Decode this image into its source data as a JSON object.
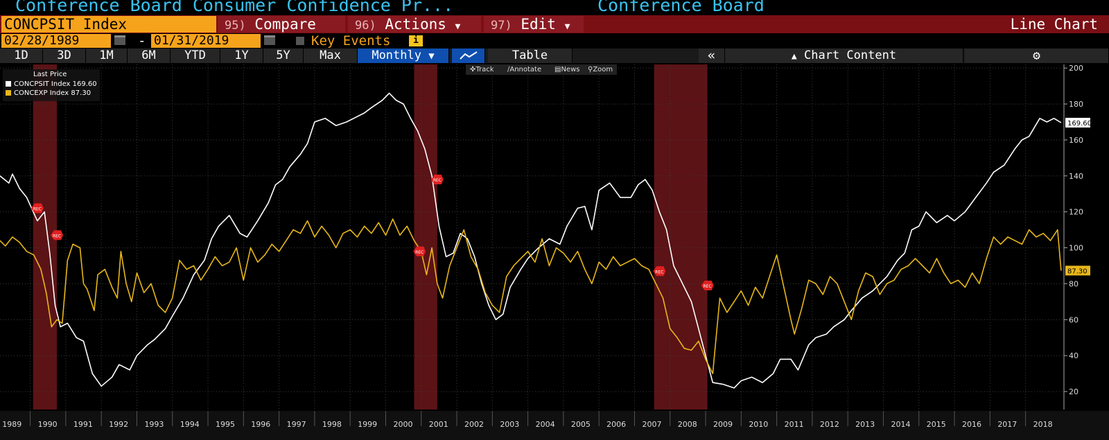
{
  "title_bar": {
    "left": "Conference Board Consumer Confidence Pr...",
    "right": "Conference Board"
  },
  "menu": {
    "ticker": "CONCPSIT Index",
    "compare_num": "95)",
    "compare": "Compare",
    "actions_num": "96)",
    "actions": "Actions",
    "edit_num": "97)",
    "edit": "Edit",
    "chart_type": "Line Chart"
  },
  "dates": {
    "start": "02/28/1989",
    "end": "01/31/2019",
    "dash": "-",
    "key_events": "Key Events",
    "info": "i"
  },
  "periods": [
    "1D",
    "3D",
    "1M",
    "6M",
    "YTD",
    "1Y",
    "5Y",
    "Max"
  ],
  "frequency": "Monthly",
  "table_label": "Table",
  "chart_content_label": "Chart Content",
  "tools": {
    "track": "Track",
    "annotate": "Annotate",
    "news": "News",
    "zoom": "Zoom"
  },
  "legend": {
    "title": "Last Price",
    "rows": [
      {
        "name": "CONCPSIT Index",
        "value": "169.60",
        "color": "#ffffff"
      },
      {
        "name": "CONCEXP Index",
        "value": "87.30",
        "color": "#e8b71a"
      }
    ]
  },
  "colors": {
    "accent": "#f6a31c",
    "brand_red": "#7a0f14",
    "selected": "#0f4fb0",
    "title": "#39c3f0"
  },
  "chart_data": {
    "type": "line",
    "x_start": 1989.15,
    "x_end": 2019.08,
    "ylim": [
      10,
      202
    ],
    "yticks": [
      20,
      40,
      60,
      80,
      100,
      120,
      140,
      160,
      180,
      200
    ],
    "xticks": [
      1989,
      1990,
      1991,
      1992,
      1993,
      1994,
      1995,
      1996,
      1997,
      1998,
      1999,
      2000,
      2001,
      2002,
      2003,
      2004,
      2005,
      2006,
      2007,
      2008,
      2009,
      2010,
      2011,
      2012,
      2013,
      2014,
      2015,
      2016,
      2017,
      2018
    ],
    "recessions": [
      [
        1990.08,
        1990.75
      ],
      [
        2000.8,
        2001.45
      ],
      [
        2007.55,
        2009.05
      ]
    ],
    "rec_markers": [
      {
        "x": 1990.2,
        "y": 122,
        "label": "REC"
      },
      {
        "x": 1990.75,
        "y": 107,
        "label": "REC"
      },
      {
        "x": 2000.95,
        "y": 98,
        "label": "REC"
      },
      {
        "x": 2001.45,
        "y": 138,
        "label": "REC"
      },
      {
        "x": 2007.7,
        "y": 87,
        "label": "REC"
      },
      {
        "x": 2009.05,
        "y": 79,
        "label": "REC"
      }
    ],
    "series": [
      {
        "name": "CONCPSIT Index",
        "color": "#ffffff",
        "last": "169.60",
        "points": [
          [
            1989.15,
            140
          ],
          [
            1989.4,
            136
          ],
          [
            1989.5,
            141
          ],
          [
            1989.7,
            133
          ],
          [
            1989.9,
            128
          ],
          [
            1990.2,
            115
          ],
          [
            1990.4,
            120
          ],
          [
            1990.55,
            97
          ],
          [
            1990.7,
            68
          ],
          [
            1990.85,
            56
          ],
          [
            1991.05,
            58
          ],
          [
            1991.3,
            50
          ],
          [
            1991.5,
            48
          ],
          [
            1991.75,
            30
          ],
          [
            1992.0,
            23
          ],
          [
            1992.3,
            28
          ],
          [
            1992.5,
            35
          ],
          [
            1992.8,
            32
          ],
          [
            1993.0,
            40
          ],
          [
            1993.3,
            46
          ],
          [
            1993.5,
            49
          ],
          [
            1993.8,
            55
          ],
          [
            1994.0,
            62
          ],
          [
            1994.3,
            72
          ],
          [
            1994.6,
            85
          ],
          [
            1994.9,
            93
          ],
          [
            1995.1,
            105
          ],
          [
            1995.3,
            112
          ],
          [
            1995.6,
            118
          ],
          [
            1995.9,
            108
          ],
          [
            1996.1,
            106
          ],
          [
            1996.4,
            115
          ],
          [
            1996.7,
            125
          ],
          [
            1996.9,
            135
          ],
          [
            1997.1,
            138
          ],
          [
            1997.3,
            145
          ],
          [
            1997.6,
            152
          ],
          [
            1997.8,
            158
          ],
          [
            1998.0,
            170
          ],
          [
            1998.3,
            172
          ],
          [
            1998.6,
            168
          ],
          [
            1998.9,
            170
          ],
          [
            1999.1,
            172
          ],
          [
            1999.4,
            175
          ],
          [
            1999.6,
            178
          ],
          [
            1999.9,
            182
          ],
          [
            2000.1,
            186
          ],
          [
            2000.3,
            182
          ],
          [
            2000.5,
            180
          ],
          [
            2000.7,
            172
          ],
          [
            2000.9,
            165
          ],
          [
            2001.1,
            155
          ],
          [
            2001.3,
            140
          ],
          [
            2001.5,
            112
          ],
          [
            2001.7,
            95
          ],
          [
            2001.9,
            97
          ],
          [
            2002.1,
            108
          ],
          [
            2002.3,
            105
          ],
          [
            2002.5,
            95
          ],
          [
            2002.7,
            80
          ],
          [
            2002.9,
            68
          ],
          [
            2003.1,
            60
          ],
          [
            2003.3,
            63
          ],
          [
            2003.5,
            78
          ],
          [
            2003.8,
            88
          ],
          [
            2004.0,
            94
          ],
          [
            2004.3,
            100
          ],
          [
            2004.6,
            105
          ],
          [
            2004.9,
            102
          ],
          [
            2005.1,
            112
          ],
          [
            2005.4,
            122
          ],
          [
            2005.6,
            123
          ],
          [
            2005.8,
            110
          ],
          [
            2006.0,
            132
          ],
          [
            2006.3,
            136
          ],
          [
            2006.6,
            128
          ],
          [
            2006.9,
            128
          ],
          [
            2007.1,
            135
          ],
          [
            2007.3,
            138
          ],
          [
            2007.5,
            132
          ],
          [
            2007.7,
            120
          ],
          [
            2007.9,
            110
          ],
          [
            2008.1,
            90
          ],
          [
            2008.4,
            78
          ],
          [
            2008.6,
            70
          ],
          [
            2008.8,
            55
          ],
          [
            2009.0,
            40
          ],
          [
            2009.2,
            25
          ],
          [
            2009.5,
            24
          ],
          [
            2009.8,
            22
          ],
          [
            2010.0,
            26
          ],
          [
            2010.3,
            28
          ],
          [
            2010.6,
            25
          ],
          [
            2010.9,
            30
          ],
          [
            2011.1,
            38
          ],
          [
            2011.4,
            38
          ],
          [
            2011.6,
            32
          ],
          [
            2011.9,
            46
          ],
          [
            2012.1,
            50
          ],
          [
            2012.4,
            52
          ],
          [
            2012.6,
            56
          ],
          [
            2012.9,
            60
          ],
          [
            2013.1,
            65
          ],
          [
            2013.4,
            72
          ],
          [
            2013.7,
            76
          ],
          [
            2013.9,
            80
          ],
          [
            2014.1,
            84
          ],
          [
            2014.4,
            93
          ],
          [
            2014.6,
            97
          ],
          [
            2014.8,
            110
          ],
          [
            2015.0,
            112
          ],
          [
            2015.2,
            120
          ],
          [
            2015.5,
            114
          ],
          [
            2015.8,
            118
          ],
          [
            2016.0,
            115
          ],
          [
            2016.3,
            120
          ],
          [
            2016.6,
            128
          ],
          [
            2016.9,
            136
          ],
          [
            2017.1,
            142
          ],
          [
            2017.4,
            146
          ],
          [
            2017.7,
            155
          ],
          [
            2017.9,
            160
          ],
          [
            2018.1,
            162
          ],
          [
            2018.4,
            172
          ],
          [
            2018.6,
            170
          ],
          [
            2018.8,
            172
          ],
          [
            2019.0,
            169.6
          ]
        ]
      },
      {
        "name": "CONCEXP Index",
        "color": "#e8b71a",
        "last": "87.30",
        "points": [
          [
            1989.15,
            104
          ],
          [
            1989.3,
            101
          ],
          [
            1989.5,
            106
          ],
          [
            1989.7,
            103
          ],
          [
            1989.9,
            98
          ],
          [
            1990.1,
            96
          ],
          [
            1990.3,
            88
          ],
          [
            1990.45,
            75
          ],
          [
            1990.6,
            56
          ],
          [
            1990.75,
            60
          ],
          [
            1990.9,
            58
          ],
          [
            1991.05,
            93
          ],
          [
            1991.2,
            102
          ],
          [
            1991.4,
            100
          ],
          [
            1991.5,
            80
          ],
          [
            1991.6,
            77
          ],
          [
            1991.8,
            65
          ],
          [
            1991.9,
            85
          ],
          [
            1992.1,
            88
          ],
          [
            1992.3,
            78
          ],
          [
            1992.45,
            72
          ],
          [
            1992.55,
            98
          ],
          [
            1992.7,
            80
          ],
          [
            1992.85,
            70
          ],
          [
            1993.0,
            86
          ],
          [
            1993.2,
            75
          ],
          [
            1993.4,
            80
          ],
          [
            1993.6,
            68
          ],
          [
            1993.8,
            64
          ],
          [
            1994.0,
            72
          ],
          [
            1994.2,
            93
          ],
          [
            1994.4,
            88
          ],
          [
            1994.6,
            90
          ],
          [
            1994.8,
            82
          ],
          [
            1995.0,
            88
          ],
          [
            1995.2,
            95
          ],
          [
            1995.4,
            90
          ],
          [
            1995.6,
            92
          ],
          [
            1995.8,
            100
          ],
          [
            1996.0,
            82
          ],
          [
            1996.2,
            100
          ],
          [
            1996.4,
            92
          ],
          [
            1996.6,
            96
          ],
          [
            1996.8,
            102
          ],
          [
            1997.0,
            98
          ],
          [
            1997.2,
            104
          ],
          [
            1997.4,
            110
          ],
          [
            1997.6,
            108
          ],
          [
            1997.8,
            115
          ],
          [
            1998.0,
            106
          ],
          [
            1998.2,
            112
          ],
          [
            1998.4,
            107
          ],
          [
            1998.6,
            100
          ],
          [
            1998.8,
            108
          ],
          [
            1999.0,
            110
          ],
          [
            1999.2,
            106
          ],
          [
            1999.4,
            112
          ],
          [
            1999.6,
            108
          ],
          [
            1999.8,
            114
          ],
          [
            2000.0,
            107
          ],
          [
            2000.2,
            116
          ],
          [
            2000.4,
            107
          ],
          [
            2000.6,
            112
          ],
          [
            2000.8,
            104
          ],
          [
            2001.0,
            98
          ],
          [
            2001.15,
            85
          ],
          [
            2001.3,
            100
          ],
          [
            2001.45,
            80
          ],
          [
            2001.6,
            72
          ],
          [
            2001.8,
            90
          ],
          [
            2002.0,
            100
          ],
          [
            2002.2,
            110
          ],
          [
            2002.4,
            95
          ],
          [
            2002.6,
            88
          ],
          [
            2002.8,
            75
          ],
          [
            2003.0,
            68
          ],
          [
            2003.2,
            64
          ],
          [
            2003.4,
            84
          ],
          [
            2003.6,
            90
          ],
          [
            2003.8,
            94
          ],
          [
            2004.0,
            98
          ],
          [
            2004.2,
            92
          ],
          [
            2004.4,
            105
          ],
          [
            2004.6,
            90
          ],
          [
            2004.8,
            100
          ],
          [
            2005.0,
            97
          ],
          [
            2005.2,
            92
          ],
          [
            2005.4,
            98
          ],
          [
            2005.6,
            88
          ],
          [
            2005.8,
            80
          ],
          [
            2006.0,
            92
          ],
          [
            2006.2,
            88
          ],
          [
            2006.4,
            95
          ],
          [
            2006.6,
            90
          ],
          [
            2006.8,
            92
          ],
          [
            2007.0,
            94
          ],
          [
            2007.2,
            90
          ],
          [
            2007.4,
            88
          ],
          [
            2007.6,
            80
          ],
          [
            2007.8,
            72
          ],
          [
            2008.0,
            55
          ],
          [
            2008.2,
            50
          ],
          [
            2008.4,
            44
          ],
          [
            2008.6,
            43
          ],
          [
            2008.8,
            48
          ],
          [
            2009.0,
            38
          ],
          [
            2009.2,
            30
          ],
          [
            2009.4,
            72
          ],
          [
            2009.6,
            64
          ],
          [
            2009.8,
            70
          ],
          [
            2010.0,
            76
          ],
          [
            2010.2,
            68
          ],
          [
            2010.4,
            78
          ],
          [
            2010.6,
            72
          ],
          [
            2010.8,
            84
          ],
          [
            2011.0,
            96
          ],
          [
            2011.2,
            78
          ],
          [
            2011.4,
            60
          ],
          [
            2011.5,
            52
          ],
          [
            2011.7,
            66
          ],
          [
            2011.9,
            82
          ],
          [
            2012.1,
            80
          ],
          [
            2012.3,
            74
          ],
          [
            2012.5,
            84
          ],
          [
            2012.7,
            80
          ],
          [
            2012.9,
            70
          ],
          [
            2013.1,
            60
          ],
          [
            2013.3,
            76
          ],
          [
            2013.5,
            86
          ],
          [
            2013.7,
            84
          ],
          [
            2013.9,
            74
          ],
          [
            2014.1,
            80
          ],
          [
            2014.3,
            82
          ],
          [
            2014.5,
            88
          ],
          [
            2014.7,
            90
          ],
          [
            2014.9,
            94
          ],
          [
            2015.1,
            90
          ],
          [
            2015.3,
            86
          ],
          [
            2015.5,
            94
          ],
          [
            2015.7,
            86
          ],
          [
            2015.9,
            80
          ],
          [
            2016.1,
            82
          ],
          [
            2016.3,
            78
          ],
          [
            2016.5,
            86
          ],
          [
            2016.7,
            80
          ],
          [
            2016.9,
            94
          ],
          [
            2017.1,
            106
          ],
          [
            2017.3,
            102
          ],
          [
            2017.5,
            106
          ],
          [
            2017.7,
            104
          ],
          [
            2017.9,
            102
          ],
          [
            2018.1,
            110
          ],
          [
            2018.3,
            106
          ],
          [
            2018.5,
            108
          ],
          [
            2018.7,
            104
          ],
          [
            2018.9,
            110
          ],
          [
            2019.0,
            87.3
          ]
        ]
      }
    ]
  }
}
